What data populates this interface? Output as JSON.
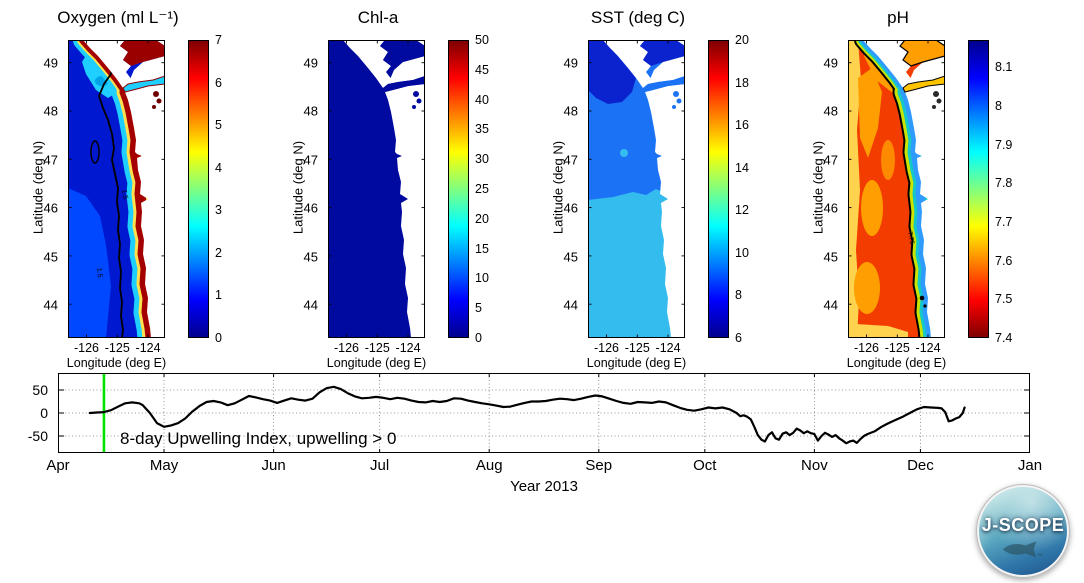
{
  "figure": {
    "background": "#ffffff"
  },
  "map_axes": {
    "ylabel": "Latitude (deg N)",
    "xlabel": "Longitude (deg E)",
    "lat_ticks": [
      49,
      48,
      47,
      46,
      45,
      44
    ],
    "lon_ticks": [
      -126,
      -125,
      -124
    ],
    "lat_range": [
      43.33,
      49.47
    ],
    "lon_range": [
      -126.6,
      -123.45
    ]
  },
  "colorbar_gradient": [
    "#00008F",
    "#0000FF",
    "#00FFFF",
    "#FFFF00",
    "#FF0000",
    "#800000"
  ],
  "panels": [
    {
      "id": "oxygen",
      "title": "Oxygen (ml L⁻¹)",
      "colorbar": {
        "min": 0,
        "max": 7,
        "ticks": [
          0,
          1,
          2,
          3,
          4,
          5,
          6,
          7
        ],
        "reversed": false
      },
      "contour_label": "1.5",
      "map_colors": {
        "base": "#0018CF",
        "patch": "#0048FF",
        "nearshore": "#1ECFFF",
        "inner": "#00A2E8",
        "fringe": "#FFE14D",
        "coast_band": "#A40000",
        "contour": "#000000",
        "sog": "#9B0000",
        "jdf": "#1ECFFF",
        "puget": "#700000"
      }
    },
    {
      "id": "chla",
      "title": "Chl-a",
      "colorbar": {
        "min": 0,
        "max": 50,
        "ticks": [
          0,
          5,
          10,
          15,
          20,
          25,
          30,
          35,
          40,
          45,
          50
        ],
        "reversed": false
      },
      "contour_label": "",
      "map_colors": {
        "base": "#000A9E"
      }
    },
    {
      "id": "sst",
      "title": "SST (deg C)",
      "colorbar": {
        "min": 6,
        "max": 20,
        "ticks": [
          6,
          8,
          10,
          12,
          14,
          16,
          18,
          20
        ],
        "reversed": false
      },
      "contour_label": "",
      "map_colors": {
        "mid": "#1B72F5",
        "south": "#35BCEF",
        "north": "#0B23CF"
      }
    },
    {
      "id": "ph",
      "title": "pH",
      "colorbar": {
        "min": 7.4,
        "max": 8.17,
        "ticks": [
          7.4,
          7.5,
          7.6,
          7.7,
          7.8,
          7.9,
          8,
          8.1
        ],
        "reversed": true
      },
      "contour_label": "7.75",
      "map_colors": {
        "base": "#F23C00",
        "dapple": "#FF9E00",
        "west": "#FFD34D",
        "band_green": "#C9E400",
        "band_cyan": "#14C8C8",
        "band_blue": "#2F9BFF",
        "contour": "#000000",
        "sog": "#FF9E00",
        "jdf": "#FFC400",
        "puget": "#2A2A2A"
      }
    }
  ],
  "timeseries": {
    "annotation": "8-day Upwelling Index, upwelling > 0",
    "xlabel": "Year 2013",
    "y_ticks": [
      50,
      0,
      -50
    ],
    "y_range": [
      -87,
      87
    ],
    "total_days": 275,
    "months": [
      {
        "label": "Apr",
        "day": 0
      },
      {
        "label": "May",
        "day": 30
      },
      {
        "label": "Jun",
        "day": 61
      },
      {
        "label": "Jul",
        "day": 91
      },
      {
        "label": "Aug",
        "day": 122
      },
      {
        "label": "Sep",
        "day": 153
      },
      {
        "label": "Oct",
        "day": 183
      },
      {
        "label": "Nov",
        "day": 214
      },
      {
        "label": "Dec",
        "day": 244
      },
      {
        "label": "Jan",
        "day": 275
      }
    ],
    "event_line_day": 13,
    "event_line_color": "#00E400",
    "line_color": "#000000"
  },
  "chart_data": [
    {
      "type": "heatmap",
      "title": "Oxygen (ml L⁻¹)",
      "xlabel": "Longitude (deg E)",
      "ylabel": "Latitude (deg N)",
      "x_ticks": [
        -126,
        -125,
        -124
      ],
      "y_ticks": [
        49,
        48,
        47,
        46,
        45,
        44
      ],
      "colormap": "jet",
      "colorbar_range": [
        0,
        7
      ],
      "colorbar_ticks": [
        0,
        1,
        2,
        3,
        4,
        5,
        6,
        7
      ],
      "contour_labels": [
        "1.5"
      ],
      "values_note": "Offshore <1.5 (dark blue); cyan shelf band ~2-3; narrow nearshore band and Strait of Georgia ~7 (dark red)"
    },
    {
      "type": "heatmap",
      "title": "Chl-a",
      "xlabel": "Longitude (deg E)",
      "ylabel": "Latitude (deg N)",
      "x_ticks": [
        -126,
        -125,
        -124
      ],
      "y_ticks": [
        49,
        48,
        47,
        46,
        45,
        44
      ],
      "colormap": "jet",
      "colorbar_range": [
        0,
        50
      ],
      "colorbar_ticks": [
        0,
        5,
        10,
        15,
        20,
        25,
        30,
        35,
        40,
        45,
        50
      ],
      "values_note": "Uniformly near 0 (dark blue) over the whole domain"
    },
    {
      "type": "heatmap",
      "title": "SST (deg C)",
      "xlabel": "Longitude (deg E)",
      "ylabel": "Latitude (deg N)",
      "x_ticks": [
        -126,
        -125,
        -124
      ],
      "y_ticks": [
        49,
        48,
        47,
        46,
        45,
        44
      ],
      "colormap": "jet",
      "colorbar_range": [
        6,
        20
      ],
      "colorbar_ticks": [
        6,
        8,
        10,
        12,
        14,
        16,
        18,
        20
      ],
      "values_note": "Three bands: ~8 in NW wedge (dark blue), ~9 mid-latitudes (blue), ~10 south of ~46.2N (light blue)"
    },
    {
      "type": "heatmap",
      "title": "pH",
      "xlabel": "Longitude (deg E)",
      "ylabel": "Latitude (deg N)",
      "x_ticks": [
        -126,
        -125,
        -124
      ],
      "y_ticks": [
        49,
        48,
        47,
        46,
        45,
        44
      ],
      "colormap": "jet-reversed",
      "colorbar_range": [
        7.4,
        8.17
      ],
      "colorbar_ticks": [
        7.4,
        7.5,
        7.6,
        7.7,
        7.8,
        7.9,
        8,
        8.1
      ],
      "contour_labels": [
        "7.75"
      ],
      "values_note": "Offshore ~7.5-7.6 (red/orange), 7.75 contour near coast, nearshore strip 7.9-8.1 (cyan/blue)"
    },
    {
      "type": "line",
      "title": "8-day Upwelling Index, upwelling > 0",
      "xlabel": "Year 2013",
      "x_unit": "days since Apr 1, 2013",
      "x_tick_labels": [
        "Apr",
        "May",
        "Jun",
        "Jul",
        "Aug",
        "Sep",
        "Oct",
        "Nov",
        "Dec",
        "Jan"
      ],
      "x_tick_days": [
        0,
        30,
        61,
        91,
        122,
        153,
        183,
        214,
        244,
        275
      ],
      "ylim": [
        -87,
        87
      ],
      "y_ticks": [
        50,
        0,
        -50
      ],
      "grid": true,
      "event_line_day": 13,
      "series": [
        {
          "name": "8-day Upwelling Index",
          "points": [
            [
              9,
              0
            ],
            [
              11,
              1
            ],
            [
              13,
              2
            ],
            [
              15,
              6
            ],
            [
              17,
              14
            ],
            [
              19,
              21
            ],
            [
              21,
              23
            ],
            [
              23,
              21
            ],
            [
              24,
              17
            ],
            [
              26,
              0
            ],
            [
              28,
              -22
            ],
            [
              30,
              -30
            ],
            [
              32,
              -27
            ],
            [
              34,
              -22
            ],
            [
              36,
              -12
            ],
            [
              38,
              3
            ],
            [
              40,
              15
            ],
            [
              42,
              24
            ],
            [
              44,
              26
            ],
            [
              46,
              23
            ],
            [
              48,
              17
            ],
            [
              50,
              21
            ],
            [
              52,
              29
            ],
            [
              54,
              37
            ],
            [
              56,
              34
            ],
            [
              58,
              30
            ],
            [
              60,
              27
            ],
            [
              62,
              22
            ],
            [
              64,
              27
            ],
            [
              66,
              32
            ],
            [
              68,
              29
            ],
            [
              70,
              27
            ],
            [
              72,
              31
            ],
            [
              74,
              45
            ],
            [
              76,
              54
            ],
            [
              78,
              57
            ],
            [
              80,
              52
            ],
            [
              82,
              43
            ],
            [
              84,
              36
            ],
            [
              86,
              32
            ],
            [
              88,
              33
            ],
            [
              90,
              35
            ],
            [
              92,
              33
            ],
            [
              94,
              30
            ],
            [
              96,
              33
            ],
            [
              98,
              31
            ],
            [
              100,
              27
            ],
            [
              102,
              24
            ],
            [
              104,
              23
            ],
            [
              106,
              26
            ],
            [
              108,
              24
            ],
            [
              110,
              26
            ],
            [
              112,
              32
            ],
            [
              114,
              31
            ],
            [
              116,
              27
            ],
            [
              118,
              24
            ],
            [
              120,
              21
            ],
            [
              122,
              19
            ],
            [
              124,
              16
            ],
            [
              126,
              13
            ],
            [
              128,
              14
            ],
            [
              130,
              18
            ],
            [
              132,
              22
            ],
            [
              134,
              25
            ],
            [
              136,
              25
            ],
            [
              138,
              26
            ],
            [
              140,
              29
            ],
            [
              142,
              31
            ],
            [
              144,
              30
            ],
            [
              146,
              28
            ],
            [
              148,
              31
            ],
            [
              150,
              35
            ],
            [
              152,
              38
            ],
            [
              154,
              36
            ],
            [
              156,
              31
            ],
            [
              158,
              26
            ],
            [
              160,
              22
            ],
            [
              162,
              20
            ],
            [
              164,
              24
            ],
            [
              166,
              23
            ],
            [
              168,
              22
            ],
            [
              170,
              25
            ],
            [
              172,
              23
            ],
            [
              174,
              17
            ],
            [
              176,
              11
            ],
            [
              178,
              7
            ],
            [
              180,
              5
            ],
            [
              182,
              8
            ],
            [
              184,
              12
            ],
            [
              186,
              10
            ],
            [
              188,
              12
            ],
            [
              190,
              8
            ],
            [
              192,
              0
            ],
            [
              193,
              -7
            ],
            [
              194,
              -5
            ],
            [
              195,
              -8
            ],
            [
              196,
              -14
            ],
            [
              197,
              -30
            ],
            [
              198,
              -48
            ],
            [
              199,
              -58
            ],
            [
              200,
              -62
            ],
            [
              201,
              -48
            ],
            [
              202,
              -42
            ],
            [
              203,
              -55
            ],
            [
              204,
              -58
            ],
            [
              205,
              -45
            ],
            [
              206,
              -42
            ],
            [
              207,
              -48
            ],
            [
              208,
              -43
            ],
            [
              209,
              -34
            ],
            [
              210,
              -38
            ],
            [
              211,
              -44
            ],
            [
              212,
              -40
            ],
            [
              213,
              -44
            ],
            [
              214,
              -46
            ],
            [
              215,
              -60
            ],
            [
              216,
              -50
            ],
            [
              217,
              -43
            ],
            [
              218,
              -47
            ],
            [
              219,
              -52
            ],
            [
              220,
              -48
            ],
            [
              221,
              -55
            ],
            [
              222,
              -60
            ],
            [
              223,
              -66
            ],
            [
              224,
              -62
            ],
            [
              225,
              -60
            ],
            [
              226,
              -65
            ],
            [
              227,
              -57
            ],
            [
              228,
              -50
            ],
            [
              229,
              -46
            ],
            [
              231,
              -40
            ],
            [
              233,
              -30
            ],
            [
              235,
              -22
            ],
            [
              237,
              -15
            ],
            [
              239,
              -8
            ],
            [
              241,
              0
            ],
            [
              243,
              8
            ],
            [
              245,
              13
            ],
            [
              247,
              12
            ],
            [
              249,
              11
            ],
            [
              250,
              10
            ],
            [
              251,
              2
            ],
            [
              252,
              -18
            ],
            [
              253,
              -16
            ],
            [
              254,
              -12
            ],
            [
              255,
              -9
            ],
            [
              256,
              0
            ],
            [
              256.5,
              12
            ]
          ]
        }
      ]
    }
  ],
  "logo": {
    "text": "J-SCOPE"
  }
}
